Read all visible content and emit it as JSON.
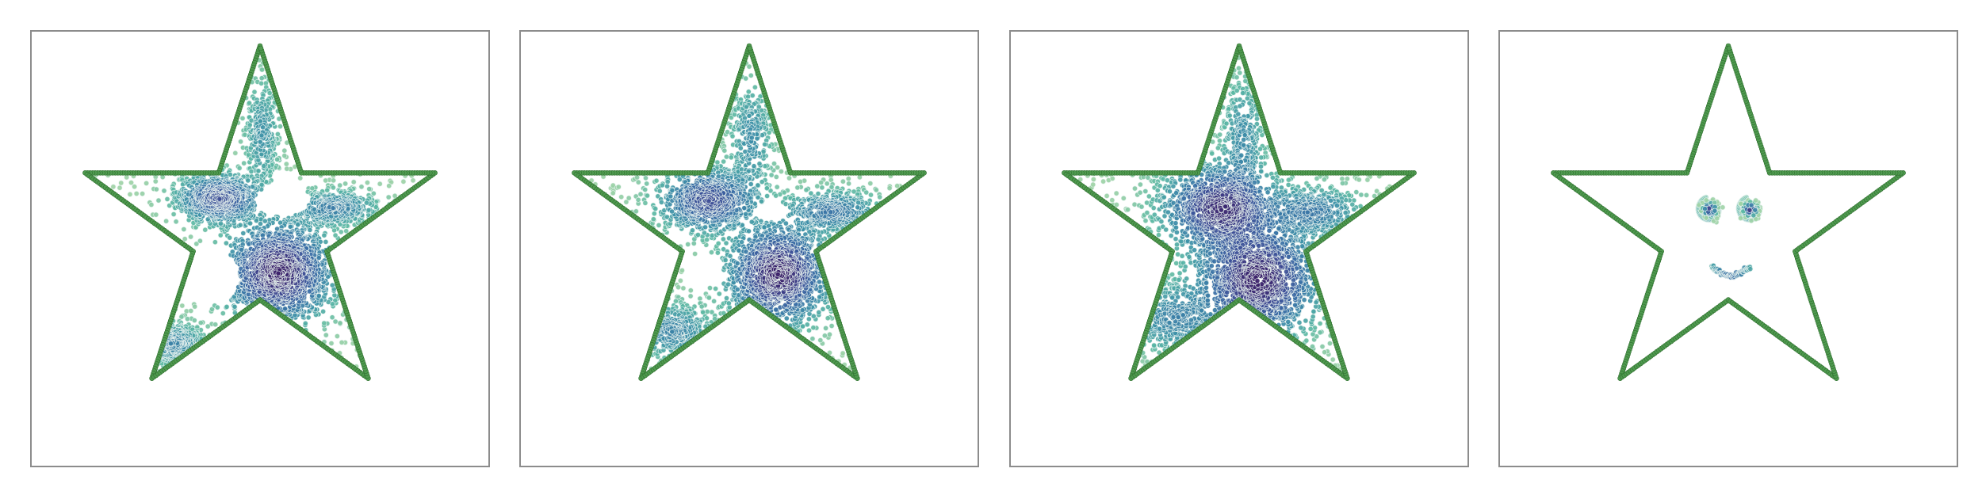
{
  "chart_data": [
    {
      "type": "scatter",
      "title": "",
      "xlabel": "",
      "ylabel": "",
      "axes_visible": false,
      "grid": false,
      "outline": "star",
      "outline_color": "#4f9a4f",
      "colormap": [
        "#9fd3a6",
        "#5bb8a4",
        "#3e92a8",
        "#3a6ea6",
        "#3e4d96",
        "#3b1f68"
      ],
      "clusters": [
        {
          "x": -0.22,
          "y": 0.17,
          "sx": 0.12,
          "sy": 0.07,
          "n": 900
        },
        {
          "x": 0.1,
          "y": -0.23,
          "sx": 0.15,
          "sy": 0.14,
          "n": 1400
        },
        {
          "x": -0.48,
          "y": -0.62,
          "sx": 0.1,
          "sy": 0.06,
          "n": 380
        },
        {
          "x": 0.4,
          "y": 0.12,
          "sx": 0.13,
          "sy": 0.05,
          "n": 420
        },
        {
          "x": 0.01,
          "y": 0.52,
          "sx": 0.05,
          "sy": 0.16,
          "n": 260
        }
      ],
      "holes": [
        {
          "x": 0.12,
          "y": 0.16,
          "rx": 0.15,
          "ry": 0.09
        },
        {
          "x": -0.28,
          "y": -0.25,
          "rx": 0.17,
          "ry": 0.16
        }
      ],
      "background_points": 300
    },
    {
      "type": "scatter",
      "title": "",
      "xlabel": "",
      "ylabel": "",
      "axes_visible": false,
      "grid": false,
      "outline": "star",
      "outline_color": "#4f9a4f",
      "colormap": [
        "#9fd3a6",
        "#5bb8a4",
        "#3e92a8",
        "#3a6ea6",
        "#3e4d96",
        "#3b1f68"
      ],
      "clusters": [
        {
          "x": -0.22,
          "y": 0.16,
          "sx": 0.14,
          "sy": 0.09,
          "n": 800
        },
        {
          "x": 0.16,
          "y": -0.24,
          "sx": 0.14,
          "sy": 0.14,
          "n": 1200
        },
        {
          "x": -0.42,
          "y": -0.55,
          "sx": 0.12,
          "sy": 0.08,
          "n": 320
        },
        {
          "x": 0.45,
          "y": 0.1,
          "sx": 0.14,
          "sy": 0.06,
          "n": 420
        },
        {
          "x": 0.01,
          "y": 0.5,
          "sx": 0.06,
          "sy": 0.16,
          "n": 260
        }
      ],
      "holes": [
        {
          "x": 0.12,
          "y": 0.1,
          "rx": 0.1,
          "ry": 0.06
        },
        {
          "x": -0.24,
          "y": -0.22,
          "rx": 0.1,
          "ry": 0.1
        }
      ],
      "background_points": 450
    },
    {
      "type": "scatter",
      "title": "",
      "xlabel": "",
      "ylabel": "",
      "axes_visible": false,
      "grid": false,
      "outline": "star",
      "outline_color": "#4f9a4f",
      "colormap": [
        "#9fd3a6",
        "#5bb8a4",
        "#3e92a8",
        "#3a6ea6",
        "#3e4d96",
        "#3b1f68"
      ],
      "clusters": [
        {
          "x": -0.1,
          "y": 0.12,
          "sx": 0.16,
          "sy": 0.12,
          "n": 1000
        },
        {
          "x": 0.1,
          "y": -0.27,
          "sx": 0.17,
          "sy": 0.16,
          "n": 1100
        },
        {
          "x": -0.35,
          "y": -0.48,
          "sx": 0.14,
          "sy": 0.1,
          "n": 300
        },
        {
          "x": 0.4,
          "y": 0.1,
          "sx": 0.14,
          "sy": 0.07,
          "n": 360
        },
        {
          "x": 0.02,
          "y": 0.5,
          "sx": 0.06,
          "sy": 0.17,
          "n": 240
        }
      ],
      "holes": [],
      "background_points": 700
    },
    {
      "type": "scatter",
      "title": "",
      "xlabel": "",
      "ylabel": "",
      "axes_visible": false,
      "grid": false,
      "outline": "star",
      "outline_color": "#4f9a4f",
      "colormap": [
        "#9fd3a6",
        "#5bb8a4",
        "#3e92a8",
        "#3a6ea6",
        "#3e4d96",
        "#3b1f68"
      ],
      "eyes": [
        {
          "x": -0.1,
          "y": 0.11,
          "spiral_radius": 0.07,
          "core_radius": 0.03
        },
        {
          "x": 0.12,
          "y": 0.11,
          "spiral_radius": 0.07,
          "core_radius": 0.03
        }
      ],
      "smile": {
        "x_start": -0.09,
        "x_end": 0.12,
        "y_mid": -0.2,
        "depth": 0.05
      }
    }
  ]
}
